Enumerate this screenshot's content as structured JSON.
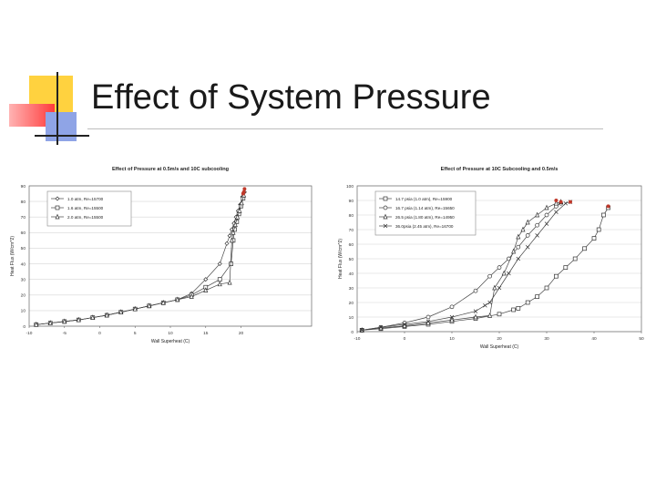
{
  "slide": {
    "title": "Effect of System Pressure"
  },
  "chart_data": [
    {
      "type": "line",
      "title": "Effect of Pressure at 0.5m/s and 10C subcooling",
      "xlabel": "Wall Superheat (C)",
      "ylabel": "Heat Flux (W/cm^2)",
      "xlim": [
        -10,
        30
      ],
      "ylim": [
        0,
        90
      ],
      "xticks": [
        -10,
        -5,
        0,
        5,
        10,
        15,
        20
      ],
      "xtick_labels": [
        "-10",
        "-5",
        "0",
        "5",
        "10",
        "15",
        "20"
      ],
      "yticks": [
        0,
        10,
        20,
        30,
        40,
        50,
        60,
        70,
        80,
        90
      ],
      "legend_position": "top-left",
      "series": [
        {
          "name": "1.0 atm, Re=15700",
          "marker": "diamond",
          "x": [
            -9,
            -7,
            -5,
            -3,
            -1,
            1,
            3,
            5,
            7,
            9,
            11,
            13,
            15,
            17,
            18,
            18.4,
            18.7,
            19.0,
            19.3,
            19.6,
            19.9,
            20.2,
            20.5
          ],
          "y": [
            1,
            2,
            3,
            4,
            5.5,
            7,
            9,
            11,
            13,
            15,
            17,
            21,
            30,
            40,
            53,
            58,
            62,
            66,
            70,
            74,
            78,
            83,
            86
          ]
        },
        {
          "name": "1.6 atm, Re=15500",
          "marker": "square",
          "x": [
            -9,
            -7,
            -5,
            -3,
            -1,
            1,
            3,
            5,
            7,
            9,
            11,
            13,
            15,
            17,
            18.6,
            18.9,
            19.1,
            19.4,
            19.7,
            20.0,
            20.3
          ],
          "y": [
            1,
            2,
            3,
            4,
            5.5,
            7,
            9,
            11,
            13,
            15,
            17,
            20,
            25,
            30,
            40,
            55,
            62,
            67,
            72,
            77,
            82
          ]
        },
        {
          "name": "2.0 atm, Re=15500",
          "marker": "triangle",
          "x": [
            -9,
            -7,
            -5,
            -3,
            -1,
            1,
            3,
            5,
            7,
            9,
            11,
            13,
            15,
            17,
            18.4,
            18.7,
            18.9,
            19.2,
            19.5,
            19.8,
            20.1,
            20.4
          ],
          "y": [
            1,
            2,
            3,
            4,
            5.5,
            7,
            9,
            11,
            13,
            15,
            17,
            19,
            23,
            27,
            28,
            55,
            60,
            65,
            70,
            74,
            79,
            84
          ]
        }
      ],
      "chf_points": {
        "color": "#c0392b",
        "x": [
          20.5,
          20.3,
          20.4
        ],
        "y": [
          88,
          85,
          86
        ]
      }
    },
    {
      "type": "line",
      "title": "Effect of Pressure at 10C Subcooling and 0.5m/s",
      "xlabel": "Wall Superheat (C)",
      "ylabel": "Heat Flux (W/cm^2)",
      "xlim": [
        -10,
        50
      ],
      "ylim": [
        0,
        100
      ],
      "xticks": [
        -10,
        0,
        10,
        20,
        30,
        40,
        50
      ],
      "xtick_labels": [
        "-10",
        "0",
        "10",
        "20",
        "30",
        "40",
        "50"
      ],
      "yticks": [
        0,
        10,
        20,
        30,
        40,
        50,
        60,
        70,
        80,
        90,
        100
      ],
      "legend_position": "top-left",
      "series": [
        {
          "name": "14.7 psia (1.0 atm), Re=15900",
          "marker": "square",
          "x": [
            -9,
            -5,
            0,
            5,
            10,
            15,
            20,
            23,
            24,
            26,
            28,
            30,
            32,
            34,
            36,
            38,
            40,
            41,
            42,
            43
          ],
          "y": [
            1,
            2,
            3.5,
            5,
            7,
            9,
            12,
            15,
            16,
            20,
            24,
            30,
            38,
            44,
            50,
            57,
            64,
            70,
            80,
            85
          ]
        },
        {
          "name": "16.7 psia (1.14 atm), Re=15650",
          "marker": "circle",
          "x": [
            -9,
            -5,
            0,
            5,
            10,
            15,
            18,
            20,
            22,
            24,
            26,
            28,
            30,
            32,
            33
          ],
          "y": [
            1,
            3,
            6,
            10,
            17,
            28,
            38,
            44,
            50,
            58,
            66,
            73,
            80,
            86,
            88
          ]
        },
        {
          "name": "26.5 psia (1.80 atm), Re=14950",
          "marker": "triangle",
          "x": [
            -9,
            -5,
            0,
            5,
            10,
            15,
            18,
            19,
            21,
            23,
            24,
            25,
            26,
            28,
            30,
            32,
            33
          ],
          "y": [
            1,
            2.5,
            4,
            6,
            8,
            10,
            11,
            30,
            40,
            55,
            65,
            70,
            75,
            80,
            85,
            88,
            89
          ]
        },
        {
          "name": "36.0psia (2.45 atm), Re=16700",
          "marker": "cross",
          "x": [
            -9,
            -5,
            0,
            5,
            10,
            15,
            17,
            18,
            20,
            22,
            24,
            26,
            28,
            30,
            32,
            34,
            35
          ],
          "y": [
            1,
            3,
            5,
            7,
            10,
            14,
            18,
            20,
            30,
            40,
            50,
            58,
            66,
            74,
            82,
            88,
            89
          ]
        }
      ],
      "chf_points": {
        "color": "#c0392b",
        "x": [
          33,
          35,
          32,
          43
        ],
        "y": [
          89,
          89,
          90,
          86
        ]
      }
    }
  ]
}
